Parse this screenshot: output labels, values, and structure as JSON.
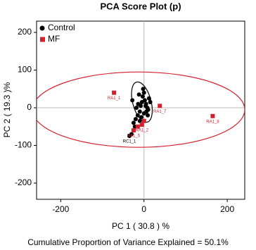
{
  "chart_data": {
    "type": "scatter",
    "title": "PCA Score Plot (p)",
    "x_label": "PC 1  ( 30.8 ) %",
    "y_label": "PC 2 ( 19.3 )%",
    "footer": "Cumulative Proportion of Variance Explained = 50.1%",
    "xlim": [
      -258,
      242
    ],
    "ylim": [
      -243,
      230
    ],
    "xticks": [
      -200,
      0,
      200
    ],
    "yticks": [
      -200,
      -100,
      0,
      100,
      200
    ],
    "legend": "top-left",
    "series": [
      {
        "name": "Control",
        "color": "#000000",
        "x": [
          -30,
          -20,
          -15,
          -10,
          -8,
          -5,
          -3,
          0,
          2,
          5,
          8,
          10,
          12,
          -25,
          -18,
          -12,
          -6,
          0,
          4,
          9,
          -22,
          -14,
          -2,
          6,
          -35,
          -28,
          -10,
          15
        ],
        "values": [
          -70,
          -30,
          -20,
          -10,
          5,
          15,
          30,
          40,
          20,
          10,
          0,
          -5,
          25,
          -40,
          0,
          35,
          -25,
          -15,
          5,
          -20,
          -50,
          10,
          50,
          -10,
          -75,
          20,
          -35,
          15
        ],
        "labels": [
          null,
          null,
          null,
          null,
          null,
          null,
          null,
          null,
          null,
          null,
          null,
          null,
          null,
          null,
          null,
          null,
          null,
          null,
          null,
          null,
          null,
          null,
          null,
          null,
          "RC1_1",
          null,
          null,
          null
        ]
      },
      {
        "name": "MF",
        "color": "#d3202e",
        "x": [
          -72,
          38,
          165,
          -25,
          -5,
          0,
          -15
        ],
        "values": [
          40,
          5,
          -22,
          -60,
          -45,
          -35,
          -50
        ],
        "labels": [
          "RA1_1",
          "RA1_7",
          "RA1_8",
          "RA1_5",
          "RA1_2",
          null,
          null
        ]
      }
    ],
    "ellipses": [
      {
        "cx": -13,
        "cy": -5,
        "rx": 255,
        "ry": 100,
        "angle": 0,
        "color": "#d3202e"
      },
      {
        "cx": -5,
        "cy": 15,
        "rx": 22,
        "ry": 55,
        "angle": -15,
        "color": "#000000"
      }
    ]
  }
}
